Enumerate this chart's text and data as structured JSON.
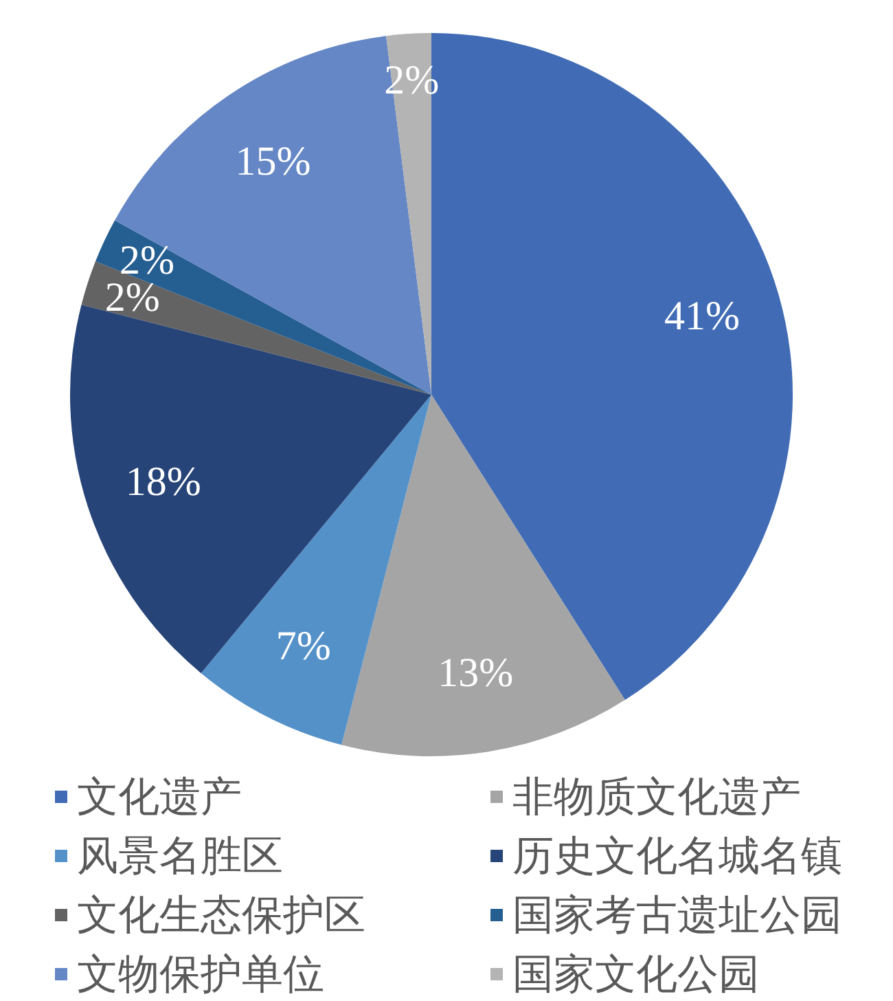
{
  "chart_data": {
    "type": "pie",
    "categories": [
      "文化遗产",
      "非物质文化遗产",
      "风景名胜区",
      "历史文化名城名镇",
      "文化生态保护区",
      "国家考古遗址公园",
      "文物保护单位",
      "国家文化公园"
    ],
    "values": [
      41,
      13,
      7,
      18,
      2,
      2,
      15,
      2
    ],
    "colors": [
      "#416cb5",
      "#a5a5a5",
      "#5591c9",
      "#264478",
      "#636363",
      "#255e91",
      "#6587c5",
      "#b4b4b4"
    ],
    "value_labels": [
      "41%",
      "13%",
      "7%",
      "18%",
      "2%",
      "2%",
      "15%",
      "2%"
    ],
    "legend": "bottom"
  }
}
